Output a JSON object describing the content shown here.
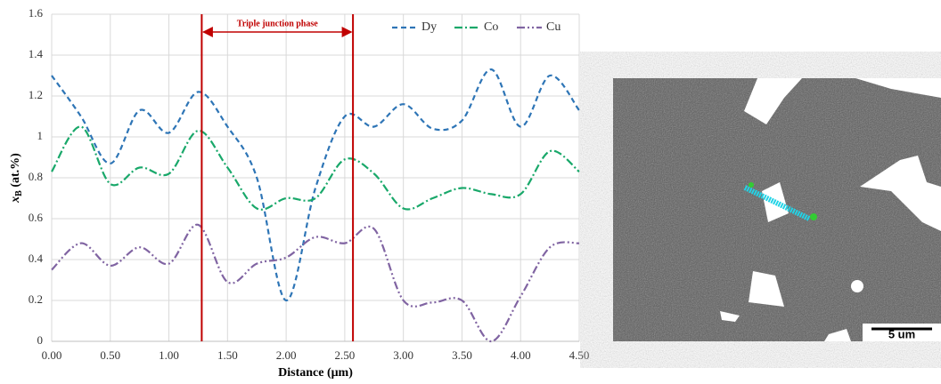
{
  "chart_data": {
    "type": "line",
    "ylabel": {
      "var": "x",
      "sub": "B",
      "unit": " (at.%)"
    },
    "xlabel": "Distance (μm)",
    "annotation": "Triple junction phase",
    "junction_lines": [
      1.28,
      2.57
    ],
    "x": [
      0,
      0.25,
      0.5,
      0.75,
      1.0,
      1.25,
      1.5,
      1.75,
      2.0,
      2.25,
      2.5,
      2.75,
      3.0,
      3.25,
      3.5,
      3.75,
      4.0,
      4.25,
      4.5
    ],
    "series": [
      {
        "name": "Dy",
        "color": "#2e75b6",
        "dash": "6,4",
        "values": [
          1.3,
          1.1,
          0.87,
          1.13,
          1.02,
          1.22,
          1.05,
          0.8,
          0.2,
          0.75,
          1.1,
          1.05,
          1.16,
          1.04,
          1.08,
          1.33,
          1.05,
          1.3,
          1.13
        ]
      },
      {
        "name": "Co",
        "color": "#19a86a",
        "dash": "9,3,2,3",
        "values": [
          0.83,
          1.05,
          0.77,
          0.85,
          0.82,
          1.03,
          0.85,
          0.65,
          0.7,
          0.7,
          0.89,
          0.82,
          0.65,
          0.7,
          0.75,
          0.72,
          0.72,
          0.93,
          0.83
        ]
      },
      {
        "name": "Cu",
        "color": "#8064a2",
        "dash": "9,3,2,3,2,3",
        "values": [
          0.35,
          0.48,
          0.37,
          0.46,
          0.38,
          0.57,
          0.29,
          0.38,
          0.41,
          0.51,
          0.48,
          0.55,
          0.2,
          0.19,
          0.2,
          0,
          0.22,
          0.46,
          0.48
        ]
      }
    ],
    "xlim": [
      0,
      4.5
    ],
    "xticks": [
      {
        "value": 0,
        "label": "0.00"
      },
      {
        "value": 0.5,
        "label": "0.50"
      },
      {
        "value": 1,
        "label": "1.00"
      },
      {
        "value": 1.5,
        "label": "1.50"
      },
      {
        "value": 2,
        "label": "2.00"
      },
      {
        "value": 2.5,
        "label": "2.50"
      },
      {
        "value": 3,
        "label": "3.00"
      },
      {
        "value": 3.5,
        "label": "3.50"
      },
      {
        "value": 4,
        "label": "4.00"
      },
      {
        "value": 4.5,
        "label": "4.50"
      }
    ],
    "ylim": [
      0,
      1.6
    ],
    "yticks": [
      0,
      0.2,
      0.4,
      0.6,
      0.8,
      1,
      1.2,
      1.4,
      1.6
    ],
    "grid": true
  },
  "image": {
    "scale_bar": "5 um"
  }
}
